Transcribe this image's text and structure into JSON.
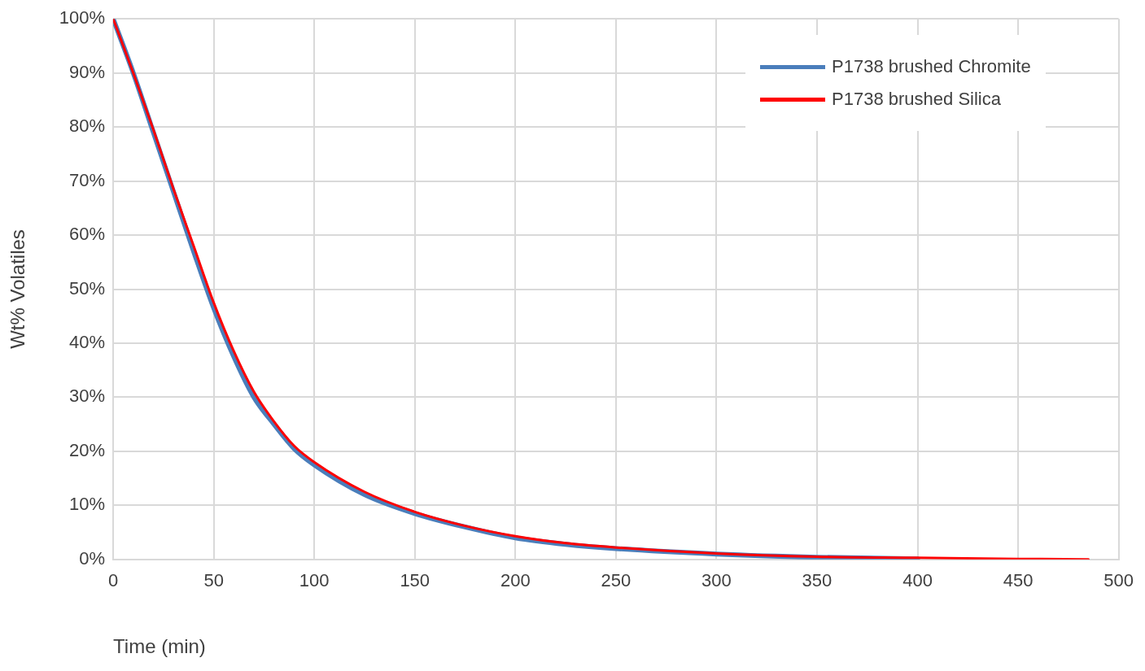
{
  "chart_data": {
    "type": "line",
    "xlabel": "Time (min)",
    "ylabel": "Wt% Volatiles",
    "xlim": [
      0,
      500
    ],
    "xticks": [
      0,
      50,
      100,
      150,
      200,
      250,
      300,
      350,
      400,
      450,
      500
    ],
    "ylim": [
      0,
      100
    ],
    "yticks": [
      {
        "value": 0,
        "label": "0%"
      },
      {
        "value": 10,
        "label": "10%"
      },
      {
        "value": 20,
        "label": "20%"
      },
      {
        "value": 30,
        "label": "30%"
      },
      {
        "value": 40,
        "label": "40%"
      },
      {
        "value": 50,
        "label": "50%"
      },
      {
        "value": 60,
        "label": "60%"
      },
      {
        "value": 70,
        "label": "70%"
      },
      {
        "value": 80,
        "label": "80%"
      },
      {
        "value": 90,
        "label": "90%"
      },
      {
        "value": 100,
        "label": "100%"
      }
    ],
    "grid": true,
    "legend": "top right",
    "marker": "none",
    "line_style": "solid",
    "series": [
      {
        "name": "P1738 brushed Chromite",
        "color": "#4a7ebb",
        "x": [
          0,
          10,
          20,
          30,
          40,
          50,
          60,
          70,
          80,
          90,
          100,
          125,
          150,
          175,
          200,
          225,
          250,
          300,
          350,
          400
        ],
        "values": [
          100,
          90,
          79,
          68,
          57,
          46.5,
          37.5,
          30,
          25,
          20.5,
          17.5,
          12,
          8.5,
          6,
          4,
          2.8,
          2,
          1,
          0.4,
          0.1
        ]
      },
      {
        "name": "P1738 brushed Silica",
        "color": "#ff0000",
        "x": [
          0,
          10,
          20,
          30,
          40,
          50,
          60,
          70,
          80,
          90,
          100,
          125,
          150,
          175,
          200,
          225,
          250,
          300,
          350,
          400,
          450,
          485
        ],
        "values": [
          100,
          90,
          79.5,
          68.5,
          58,
          47.5,
          38.5,
          31,
          25.5,
          21,
          18,
          12.5,
          8.8,
          6.2,
          4.3,
          3,
          2.2,
          1.1,
          0.5,
          0.3,
          0.1,
          0
        ]
      }
    ]
  }
}
